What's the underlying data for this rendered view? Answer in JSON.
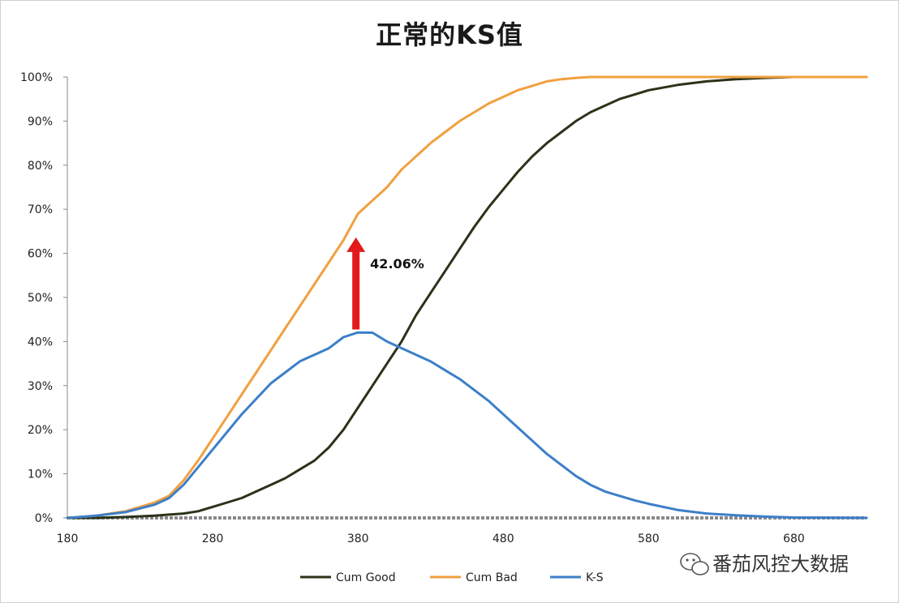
{
  "chart_data": {
    "type": "line",
    "title": "正常的KS值",
    "xlabel": "",
    "ylabel": "",
    "xlim": [
      180,
      730
    ],
    "ylim": [
      0,
      1
    ],
    "x_ticks": [
      180,
      280,
      380,
      480,
      580,
      680
    ],
    "x_tick_labels": [
      "180",
      "280",
      "380",
      "480",
      "580",
      "680"
    ],
    "y_ticks": [
      0,
      0.1,
      0.2,
      0.3,
      0.4,
      0.5,
      0.6,
      0.7,
      0.8,
      0.9,
      1.0
    ],
    "y_tick_labels": [
      "0%",
      "10%",
      "20%",
      "30%",
      "40%",
      "50%",
      "60%",
      "70%",
      "80%",
      "90%",
      "100%"
    ],
    "grid": false,
    "legend_position": "bottom",
    "series": [
      {
        "name": "Cum Good",
        "color": "#2a3318",
        "points": [
          [
            180,
            0
          ],
          [
            200,
            0
          ],
          [
            220,
            0.002
          ],
          [
            240,
            0.005
          ],
          [
            260,
            0.01
          ],
          [
            270,
            0.015
          ],
          [
            280,
            0.025
          ],
          [
            290,
            0.035
          ],
          [
            300,
            0.045
          ],
          [
            310,
            0.06
          ],
          [
            320,
            0.075
          ],
          [
            330,
            0.09
          ],
          [
            340,
            0.11
          ],
          [
            350,
            0.13
          ],
          [
            360,
            0.16
          ],
          [
            370,
            0.2
          ],
          [
            380,
            0.25
          ],
          [
            390,
            0.3
          ],
          [
            400,
            0.35
          ],
          [
            410,
            0.4
          ],
          [
            420,
            0.46
          ],
          [
            430,
            0.51
          ],
          [
            440,
            0.56
          ],
          [
            450,
            0.61
          ],
          [
            460,
            0.66
          ],
          [
            470,
            0.705
          ],
          [
            480,
            0.745
          ],
          [
            490,
            0.785
          ],
          [
            500,
            0.82
          ],
          [
            510,
            0.85
          ],
          [
            520,
            0.875
          ],
          [
            530,
            0.9
          ],
          [
            540,
            0.92
          ],
          [
            550,
            0.935
          ],
          [
            560,
            0.95
          ],
          [
            570,
            0.96
          ],
          [
            580,
            0.97
          ],
          [
            600,
            0.982
          ],
          [
            620,
            0.99
          ],
          [
            640,
            0.995
          ],
          [
            660,
            0.998
          ],
          [
            680,
            1.0
          ],
          [
            730,
            1.0
          ]
        ]
      },
      {
        "name": "Cum Bad",
        "color": "#f0a040",
        "points": [
          [
            180,
            0
          ],
          [
            200,
            0.005
          ],
          [
            220,
            0.015
          ],
          [
            240,
            0.035
          ],
          [
            250,
            0.05
          ],
          [
            260,
            0.085
          ],
          [
            270,
            0.13
          ],
          [
            280,
            0.18
          ],
          [
            290,
            0.23
          ],
          [
            300,
            0.28
          ],
          [
            310,
            0.33
          ],
          [
            320,
            0.38
          ],
          [
            330,
            0.43
          ],
          [
            340,
            0.48
          ],
          [
            350,
            0.53
          ],
          [
            360,
            0.58
          ],
          [
            370,
            0.63
          ],
          [
            375,
            0.66
          ],
          [
            380,
            0.69
          ],
          [
            390,
            0.72
          ],
          [
            400,
            0.75
          ],
          [
            410,
            0.79
          ],
          [
            420,
            0.82
          ],
          [
            430,
            0.85
          ],
          [
            440,
            0.875
          ],
          [
            450,
            0.9
          ],
          [
            460,
            0.92
          ],
          [
            470,
            0.94
          ],
          [
            480,
            0.955
          ],
          [
            490,
            0.97
          ],
          [
            500,
            0.98
          ],
          [
            510,
            0.99
          ],
          [
            520,
            0.995
          ],
          [
            530,
            0.998
          ],
          [
            540,
            1.0
          ],
          [
            730,
            1.0
          ]
        ]
      },
      {
        "name": "K-S",
        "color": "#3c7fc8",
        "points": [
          [
            180,
            0
          ],
          [
            200,
            0.005
          ],
          [
            220,
            0.013
          ],
          [
            240,
            0.03
          ],
          [
            250,
            0.045
          ],
          [
            260,
            0.075
          ],
          [
            270,
            0.115
          ],
          [
            280,
            0.155
          ],
          [
            290,
            0.195
          ],
          [
            300,
            0.235
          ],
          [
            310,
            0.27
          ],
          [
            320,
            0.305
          ],
          [
            330,
            0.33
          ],
          [
            340,
            0.355
          ],
          [
            350,
            0.37
          ],
          [
            360,
            0.385
          ],
          [
            370,
            0.41
          ],
          [
            380,
            0.4206
          ],
          [
            390,
            0.42
          ],
          [
            400,
            0.4
          ],
          [
            410,
            0.385
          ],
          [
            420,
            0.37
          ],
          [
            430,
            0.355
          ],
          [
            440,
            0.335
          ],
          [
            450,
            0.315
          ],
          [
            460,
            0.29
          ],
          [
            470,
            0.265
          ],
          [
            480,
            0.235
          ],
          [
            490,
            0.205
          ],
          [
            500,
            0.175
          ],
          [
            510,
            0.145
          ],
          [
            520,
            0.12
          ],
          [
            530,
            0.095
          ],
          [
            540,
            0.075
          ],
          [
            550,
            0.06
          ],
          [
            560,
            0.05
          ],
          [
            570,
            0.04
          ],
          [
            580,
            0.032
          ],
          [
            600,
            0.018
          ],
          [
            620,
            0.01
          ],
          [
            640,
            0.006
          ],
          [
            660,
            0.003
          ],
          [
            680,
            0.001
          ],
          [
            730,
            0.0
          ]
        ]
      }
    ],
    "annotations": [
      {
        "text": "42.06%",
        "x": 380,
        "y_from": 0.42,
        "y_to": 0.64,
        "arrow_color": "#e31a1c"
      }
    ]
  },
  "watermark": {
    "text": "番茄风控大数据",
    "icon": "wechat-icon"
  }
}
